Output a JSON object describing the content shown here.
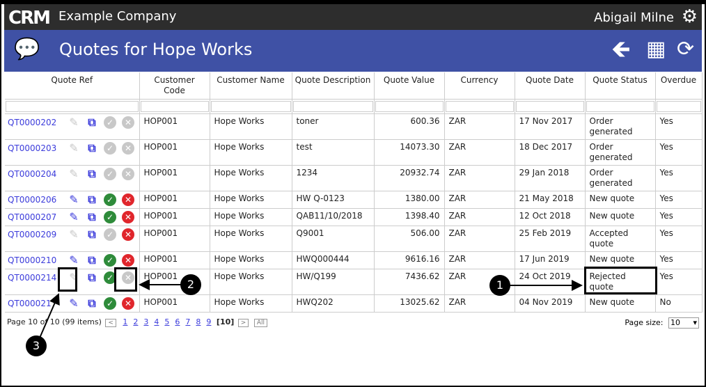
{
  "header": {
    "logo": "CRM",
    "company": "Example Company",
    "user": "Abigail Milne"
  },
  "page": {
    "title": "Quotes for Hope Works"
  },
  "columns": [
    "Quote Ref",
    "Customer Code",
    "Customer Name",
    "Quote Description",
    "Quote Value",
    "Currency",
    "Quote Date",
    "Quote Status",
    "Overdue"
  ],
  "rows": [
    {
      "ref": "QT0000202",
      "code": "HOP001",
      "name": "Hope Works",
      "desc": "toner",
      "value": "600.36",
      "cur": "ZAR",
      "date": "17 Nov 2017",
      "status": "Order generated",
      "overdue": "Yes",
      "active": false
    },
    {
      "ref": "QT0000203",
      "code": "HOP001",
      "name": "Hope Works",
      "desc": "test",
      "value": "14073.30",
      "cur": "ZAR",
      "date": "18 Dec 2017",
      "status": "Order generated",
      "overdue": "Yes",
      "active": false
    },
    {
      "ref": "QT0000204",
      "code": "HOP001",
      "name": "Hope Works",
      "desc": "1234",
      "value": "20932.74",
      "cur": "ZAR",
      "date": "29 Jan 2018",
      "status": "Order generated",
      "overdue": "Yes",
      "active": false
    },
    {
      "ref": "QT0000206",
      "code": "HOP001",
      "name": "Hope Works",
      "desc": "HW Q-0123",
      "value": "1380.00",
      "cur": "ZAR",
      "date": "21 May 2018",
      "status": "New quote",
      "overdue": "Yes",
      "active": true
    },
    {
      "ref": "QT0000207",
      "code": "HOP001",
      "name": "Hope Works",
      "desc": "QAB11/10/2018",
      "value": "1398.40",
      "cur": "ZAR",
      "date": "12 Oct 2018",
      "status": "New quote",
      "overdue": "Yes",
      "active": true
    },
    {
      "ref": "QT0000209",
      "code": "HOP001",
      "name": "Hope Works",
      "desc": "Q9001",
      "value": "506.00",
      "cur": "ZAR",
      "date": "25 Feb 2019",
      "status": "Accepted quote",
      "overdue": "Yes",
      "active": "accepted"
    },
    {
      "ref": "QT0000210",
      "code": "HOP001",
      "name": "Hope Works",
      "desc": "HWQ000444",
      "value": "9616.16",
      "cur": "ZAR",
      "date": "17 Jun 2019",
      "status": "New quote",
      "overdue": "Yes",
      "active": true
    },
    {
      "ref": "QT0000214",
      "code": "HOP001",
      "name": "Hope Works",
      "desc": "HW/Q199",
      "value": "7436.62",
      "cur": "ZAR",
      "date": "24 Oct 2019",
      "status": "Rejected quote",
      "overdue": "Yes",
      "active": "rejected"
    },
    {
      "ref": "QT000021",
      "code": "HOP001",
      "name": "Hope Works",
      "desc": "HWQ202",
      "value": "13025.62",
      "cur": "ZAR",
      "date": "04 Nov 2019",
      "status": "New quote",
      "overdue": "No",
      "active": true
    }
  ],
  "pager": {
    "summary": "Page 10 of 10 (99 items)",
    "pages": [
      "1",
      "2",
      "3",
      "4",
      "5",
      "6",
      "7",
      "8",
      "9"
    ],
    "current": "[10]",
    "all": "All",
    "page_size_label": "Page size:",
    "page_size": "10"
  },
  "annotations": [
    "1",
    "2",
    "3"
  ],
  "colors": {
    "topbar": "#2d2d2d",
    "titlebar": "#3f51a5",
    "link": "#3b3bdb",
    "ok": "#2e8b3a",
    "reject": "#e0262c",
    "disabled": "#c8c8c8"
  }
}
